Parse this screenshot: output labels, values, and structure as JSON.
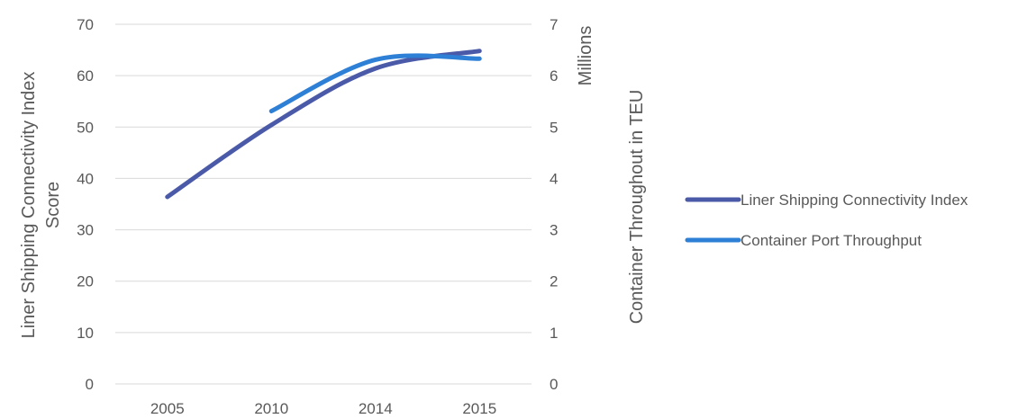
{
  "chart_data": {
    "type": "line",
    "categories": [
      "2005",
      "2010",
      "2014",
      "2015"
    ],
    "series": [
      {
        "name": "Liner Shipping Connectivity Index",
        "axis": "left",
        "color": "#4a5aa8",
        "values": [
          36.4,
          50.4,
          61.4,
          64.8
        ]
      },
      {
        "name": "Container Port Throughput",
        "axis": "right",
        "color": "#2e7fd6",
        "values": [
          null,
          5.31,
          6.31,
          6.33
        ]
      }
    ],
    "y_left": {
      "label_line1": "Liner Shipping Connectivity Index",
      "label_line2": "Score",
      "lim": [
        0,
        70
      ],
      "ticks": [
        "0",
        "10",
        "20",
        "30",
        "40",
        "50",
        "60",
        "70"
      ]
    },
    "y_right": {
      "label": "Container Throughout in TEU",
      "units_label": "Millions",
      "lim": [
        0,
        7
      ],
      "ticks": [
        "0",
        "1",
        "2",
        "3",
        "4",
        "5",
        "6",
        "7"
      ]
    },
    "grid": true,
    "legend_position": "right",
    "smoothed": true
  }
}
